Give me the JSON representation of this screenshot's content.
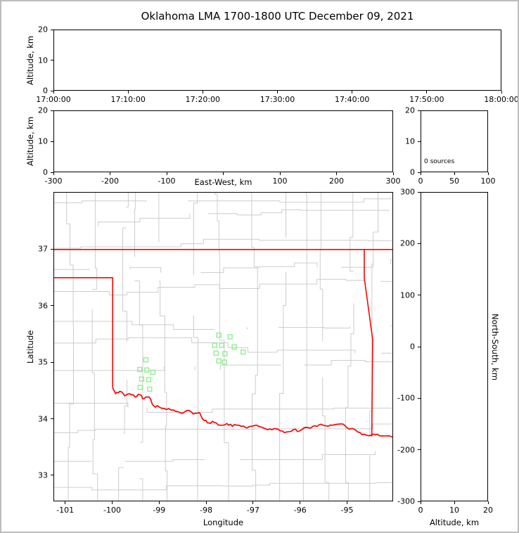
{
  "figure": {
    "title": "Oklahoma LMA 1700-1800 UTC December 09, 2021",
    "background": "#ffffff",
    "frame_color": "#bdbdbd"
  },
  "colors": {
    "axis": "#000000",
    "county_lines": "#cccccc",
    "state_border": "#ff0000",
    "station_marker": "#90ee90"
  },
  "chart_data": [
    {
      "id": "time_height",
      "type": "scatter",
      "title": "",
      "xlabel": "",
      "ylabel": "Altitude, km",
      "xlim": [
        0,
        3600
      ],
      "ylim": [
        0,
        20
      ],
      "xticks": [
        {
          "v": 0,
          "label": "17:00:00"
        },
        {
          "v": 600,
          "label": "17:10:00"
        },
        {
          "v": 1200,
          "label": "17:20:00"
        },
        {
          "v": 1800,
          "label": "17:30:00"
        },
        {
          "v": 2400,
          "label": "17:40:00"
        },
        {
          "v": 3000,
          "label": "17:50:00"
        },
        {
          "v": 3600,
          "label": "18:00:00"
        }
      ],
      "yticks": [
        {
          "v": 0,
          "label": "0"
        },
        {
          "v": 10,
          "label": "10"
        },
        {
          "v": 20,
          "label": "20"
        }
      ],
      "points": []
    },
    {
      "id": "ew_height",
      "type": "scatter",
      "xlabel": "East-West, km",
      "ylabel": "Altitude, km",
      "xlim": [
        -300,
        300
      ],
      "ylim": [
        0,
        20
      ],
      "xticks": [
        {
          "v": -300,
          "label": "-300"
        },
        {
          "v": -200,
          "label": "-200"
        },
        {
          "v": -100,
          "label": "-100"
        },
        {
          "v": 0,
          "label": ""
        },
        {
          "v": 100,
          "label": "100"
        },
        {
          "v": 200,
          "label": "200"
        },
        {
          "v": 300,
          "label": "300"
        }
      ],
      "yticks": [
        {
          "v": 0,
          "label": "0"
        },
        {
          "v": 10,
          "label": "10"
        },
        {
          "v": 20,
          "label": "20"
        }
      ],
      "points": []
    },
    {
      "id": "src_hist",
      "type": "bar",
      "xlabel": "",
      "ylabel": "",
      "annotation": "0 sources",
      "xlim": [
        0,
        100
      ],
      "ylim": [
        0,
        20
      ],
      "xticks": [
        {
          "v": 0,
          "label": "0"
        },
        {
          "v": 50,
          "label": "50"
        },
        {
          "v": 100,
          "label": "100"
        }
      ],
      "yticks": [
        {
          "v": 0,
          "label": "0"
        },
        {
          "v": 10,
          "label": "10"
        },
        {
          "v": 20,
          "label": "20"
        }
      ],
      "values": []
    },
    {
      "id": "plan_view_map",
      "type": "scatter",
      "xlabel": "Longitude",
      "ylabel": "Latitude",
      "xlim": [
        -101.25,
        -94.02
      ],
      "ylim": [
        32.54,
        38.01
      ],
      "xticks": [
        {
          "v": -101,
          "label": "-101"
        },
        {
          "v": -100,
          "label": "-100"
        },
        {
          "v": -99,
          "label": "-99"
        },
        {
          "v": -98,
          "label": "-98"
        },
        {
          "v": -97,
          "label": "-97"
        },
        {
          "v": -96,
          "label": "-96"
        },
        {
          "v": -95,
          "label": "-95"
        }
      ],
      "yticks": [
        {
          "v": 33,
          "label": "33"
        },
        {
          "v": 34,
          "label": "34"
        },
        {
          "v": 35,
          "label": "35"
        },
        {
          "v": 36,
          "label": "36"
        },
        {
          "v": 37,
          "label": "37"
        }
      ],
      "stations_lon_lat": [
        [
          -99.29,
          35.04
        ],
        [
          -99.42,
          34.87
        ],
        [
          -99.27,
          34.86
        ],
        [
          -99.14,
          34.82
        ],
        [
          -99.38,
          34.7
        ],
        [
          -99.23,
          34.69
        ],
        [
          -99.41,
          34.55
        ],
        [
          -99.21,
          34.52
        ],
        [
          -97.73,
          35.48
        ],
        [
          -97.49,
          35.45
        ],
        [
          -97.82,
          35.3
        ],
        [
          -97.67,
          35.3
        ],
        [
          -97.4,
          35.27
        ],
        [
          -97.79,
          35.16
        ],
        [
          -97.6,
          35.15
        ],
        [
          -97.21,
          35.18
        ],
        [
          -97.73,
          35.02
        ],
        [
          -97.61,
          35.0
        ]
      ],
      "state_borders_lon_lat": [
        [
          [
            -101.25,
            37.0
          ],
          [
            -94.02,
            37.0
          ]
        ],
        [
          [
            -101.25,
            36.5
          ],
          [
            -100.0,
            36.5
          ],
          [
            -100.0,
            34.555
          ]
        ],
        [
          [
            -94.62,
            37.0
          ],
          [
            -94.62,
            36.5
          ],
          [
            -94.44,
            35.4
          ],
          [
            -94.46,
            33.68
          ]
        ]
      ],
      "red_river_lon_lat": [
        [
          -100.0,
          34.555
        ],
        [
          -99.94,
          34.44
        ],
        [
          -99.85,
          34.48
        ],
        [
          -99.74,
          34.4
        ],
        [
          -99.64,
          34.44
        ],
        [
          -99.52,
          34.38
        ],
        [
          -99.42,
          34.42
        ],
        [
          -99.33,
          34.35
        ],
        [
          -99.22,
          34.38
        ],
        [
          -99.13,
          34.23
        ],
        [
          -99.0,
          34.2
        ],
        [
          -98.85,
          34.16
        ],
        [
          -98.7,
          34.15
        ],
        [
          -98.55,
          34.1
        ],
        [
          -98.42,
          34.14
        ],
        [
          -98.28,
          34.08
        ],
        [
          -98.14,
          34.1
        ],
        [
          -98.04,
          33.96
        ],
        [
          -97.94,
          33.92
        ],
        [
          -97.83,
          33.93
        ],
        [
          -97.7,
          33.88
        ],
        [
          -97.56,
          33.91
        ],
        [
          -97.44,
          33.86
        ],
        [
          -97.3,
          33.88
        ],
        [
          -97.16,
          33.84
        ],
        [
          -97.04,
          33.86
        ],
        [
          -96.92,
          33.88
        ],
        [
          -96.8,
          33.84
        ],
        [
          -96.68,
          33.8
        ],
        [
          -96.55,
          33.82
        ],
        [
          -96.42,
          33.78
        ],
        [
          -96.28,
          33.76
        ],
        [
          -96.14,
          33.8
        ],
        [
          -96.0,
          33.78
        ],
        [
          -95.86,
          33.84
        ],
        [
          -95.72,
          33.86
        ],
        [
          -95.58,
          33.89
        ],
        [
          -95.44,
          33.87
        ],
        [
          -95.3,
          33.88
        ],
        [
          -95.16,
          33.9
        ],
        [
          -95.02,
          33.86
        ],
        [
          -94.9,
          33.82
        ],
        [
          -94.76,
          33.76
        ],
        [
          -94.62,
          33.72
        ],
        [
          -94.48,
          33.7
        ],
        [
          -94.34,
          33.72
        ],
        [
          -94.2,
          33.69
        ],
        [
          -94.02,
          33.67
        ]
      ]
    },
    {
      "id": "ns_height",
      "type": "scatter",
      "xlabel": "Altitude, km",
      "ylabel": "North-South, km",
      "xlim": [
        0,
        20
      ],
      "ylim": [
        -300,
        300
      ],
      "xticks": [
        {
          "v": 0,
          "label": "0"
        },
        {
          "v": 10,
          "label": "10"
        },
        {
          "v": 20,
          "label": "20"
        }
      ],
      "yticks": [
        {
          "v": -300,
          "label": "-300"
        },
        {
          "v": -200,
          "label": "-200"
        },
        {
          "v": -100,
          "label": "-100"
        },
        {
          "v": 0,
          "label": "0"
        },
        {
          "v": 100,
          "label": "100"
        },
        {
          "v": 200,
          "label": "200"
        },
        {
          "v": 300,
          "label": "300"
        }
      ],
      "points": []
    }
  ]
}
